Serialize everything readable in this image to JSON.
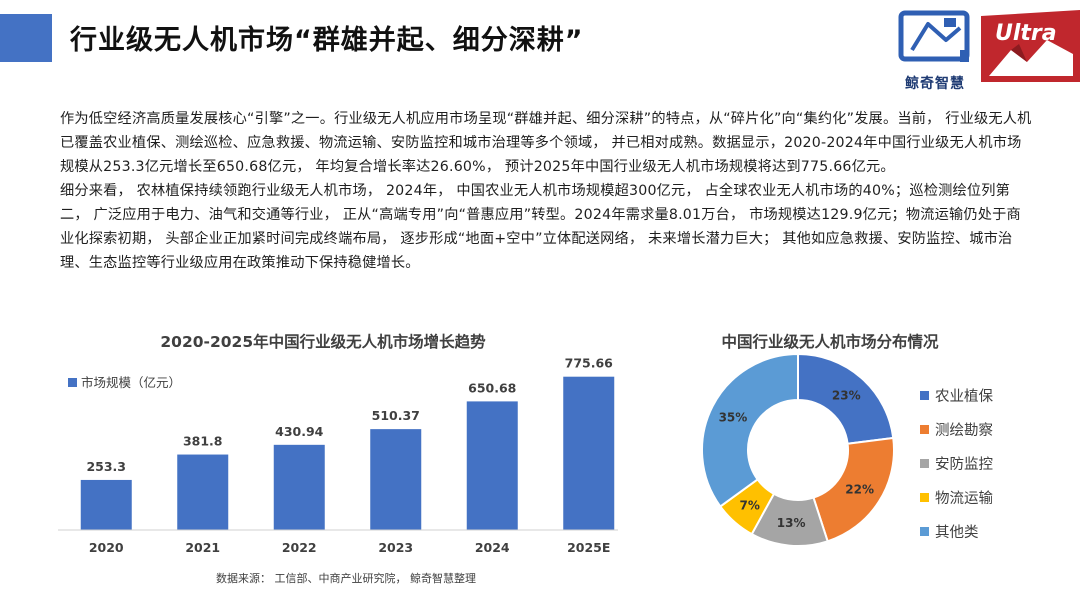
{
  "header": {
    "title": "行业级无人机市场“群雄并起、细分深耕”",
    "accent_color": "#4472c4",
    "logo_brand": "鲸奇智慧",
    "logo_ultra": "Ultra"
  },
  "body": {
    "paragraphs": [
      "作为低空经济高质量发展核心“引擎”之一。行业级无人机应用市场呈现“群雄并起、细分深耕”的特点，从“碎片化”向“集约化”发展。当前， 行业级无人机已覆盖农业植保、测绘巡检、应急救援、物流运输、安防监控和城市治理等多个领域， 并已相对成熟。数据显示，2020-2024年中国行业级无人机市场规模从253.3亿元增长至650.68亿元， 年均复合增长率达26.60%， 预计2025年中国行业级无人机市场规模将达到775.66亿元。",
      "细分来看， 农林植保持续领跑行业级无人机市场， 2024年， 中国农业无人机市场规模超300亿元， 占全球农业无人机市场的40%；巡检测绘位列第二， 广泛应用于电力、油气和交通等行业， 正从“高端专用”向“普惠应用”转型。2024年需求量8.01万台， 市场规模达129.9亿元；物流运输仍处于商业化探索初期， 头部企业正加紧时间完成终端布局， 逐步形成“地面+空中”立体配送网络， 未来增长潜力巨大； 其他如应急救援、安防监控、城市治理、生态监控等行业级应用在政策推动下保持稳健增长。"
    ]
  },
  "chart_data": [
    {
      "type": "bar",
      "title": "2020-2025年中国行业级无人机市场增长趋势",
      "categories": [
        "2020",
        "2021",
        "2022",
        "2023",
        "2024",
        "2025E"
      ],
      "series": [
        {
          "name": "市场规模（亿元）",
          "values": [
            253.3,
            381.8,
            430.94,
            510.37,
            650.68,
            775.66
          ],
          "color": "#4472c4"
        }
      ],
      "data_labels": [
        "253.3",
        "381.8",
        "430.94",
        "510.37",
        "650.68",
        "775.66"
      ],
      "ylim": [
        0,
        850
      ],
      "grid": false,
      "legend_position": "top-left",
      "source": "数据来源： 工信部、中商产业研究院， 鲸奇智慧整理"
    },
    {
      "type": "pie",
      "title": "中国行业级无人机市场分布情况",
      "labels": [
        "农业植保",
        "测绘勘察",
        "安防监控",
        "物流运输",
        "其他类"
      ],
      "values": [
        23,
        22,
        13,
        7,
        35
      ],
      "value_labels": [
        "23%",
        "22%",
        "13%",
        "7%",
        "35%"
      ],
      "colors": [
        "#4472c4",
        "#ed7d31",
        "#a5a5a5",
        "#ffc000",
        "#5b9bd5"
      ],
      "donut": true,
      "legend_position": "right"
    }
  ]
}
